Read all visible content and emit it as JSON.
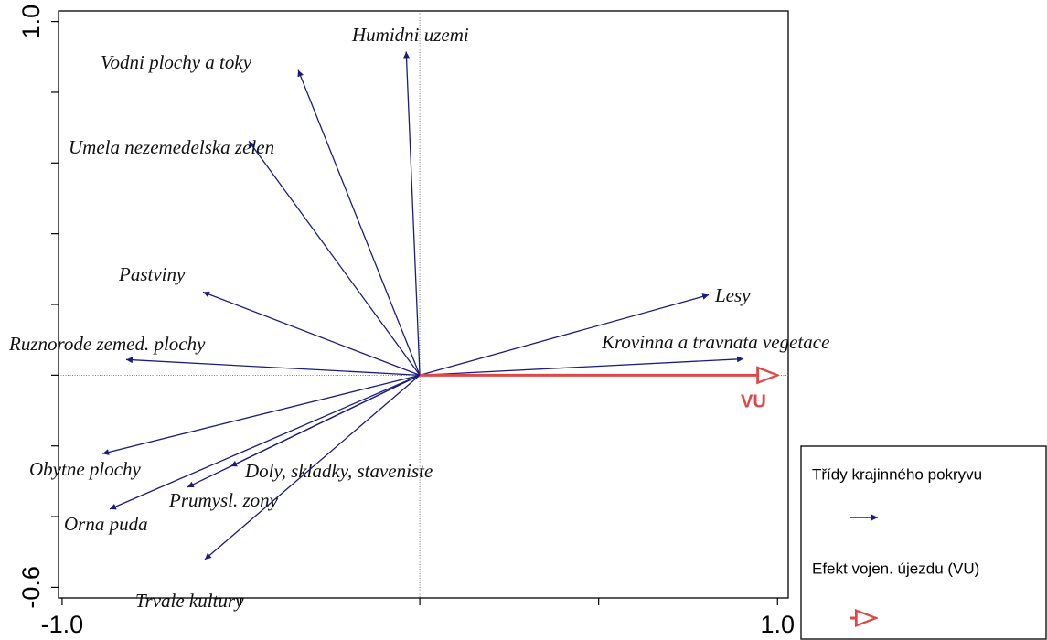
{
  "chart_data": {
    "type": "biplot",
    "xlim": [
      -1.01,
      1.03
    ],
    "ylim": [
      -0.63,
      1.03
    ],
    "xticks": [
      {
        "value": -1,
        "label": "-1.0"
      },
      {
        "value": -0.5,
        "label": null
      },
      {
        "value": 0,
        "label": null
      },
      {
        "value": 0.5,
        "label": null
      },
      {
        "value": 1,
        "label": "1.0"
      }
    ],
    "yticks": [
      {
        "value": -0.6,
        "label": "-0.6"
      },
      {
        "value": -0.4,
        "label": null
      },
      {
        "value": -0.2,
        "label": null
      },
      {
        "value": 0,
        "label": null
      },
      {
        "value": 0.2,
        "label": null
      },
      {
        "value": 0.4,
        "label": null
      },
      {
        "value": 0.6,
        "label": null
      },
      {
        "value": 0.8,
        "label": null
      },
      {
        "value": 1,
        "label": "1.0"
      }
    ],
    "series": [
      {
        "name": "Třídy krajinného pokryvu",
        "color": "#1c1c80",
        "head": "filled",
        "labels": [
          "Vodni plochy a toky",
          "Humidni uzemi",
          "Umela nezemedelska zelen",
          "Pastviny",
          "Ruznorode zemed. plochy",
          "Lesy",
          "Krovinna a travnata vegetace",
          "Obytne plochy",
          "Doly, skladky, staveniste",
          "Prumysl. zony",
          "Orna puda",
          "Trvale kultury"
        ],
        "x": [
          -0.34,
          -0.038,
          -0.478,
          -0.606,
          -0.821,
          0.808,
          0.905,
          -0.887,
          -0.529,
          -0.65,
          -0.867,
          -0.601
        ],
        "y": [
          0.863,
          0.915,
          0.662,
          0.235,
          0.044,
          0.227,
          0.046,
          -0.222,
          -0.258,
          -0.317,
          -0.379,
          -0.521
        ]
      },
      {
        "name": "Efekt vojen. újezdu (VU)",
        "color": "#e04848",
        "head": "hollow",
        "labels": [
          "VU"
        ],
        "x": [
          1.0
        ],
        "y": [
          0
        ]
      }
    ]
  }
}
